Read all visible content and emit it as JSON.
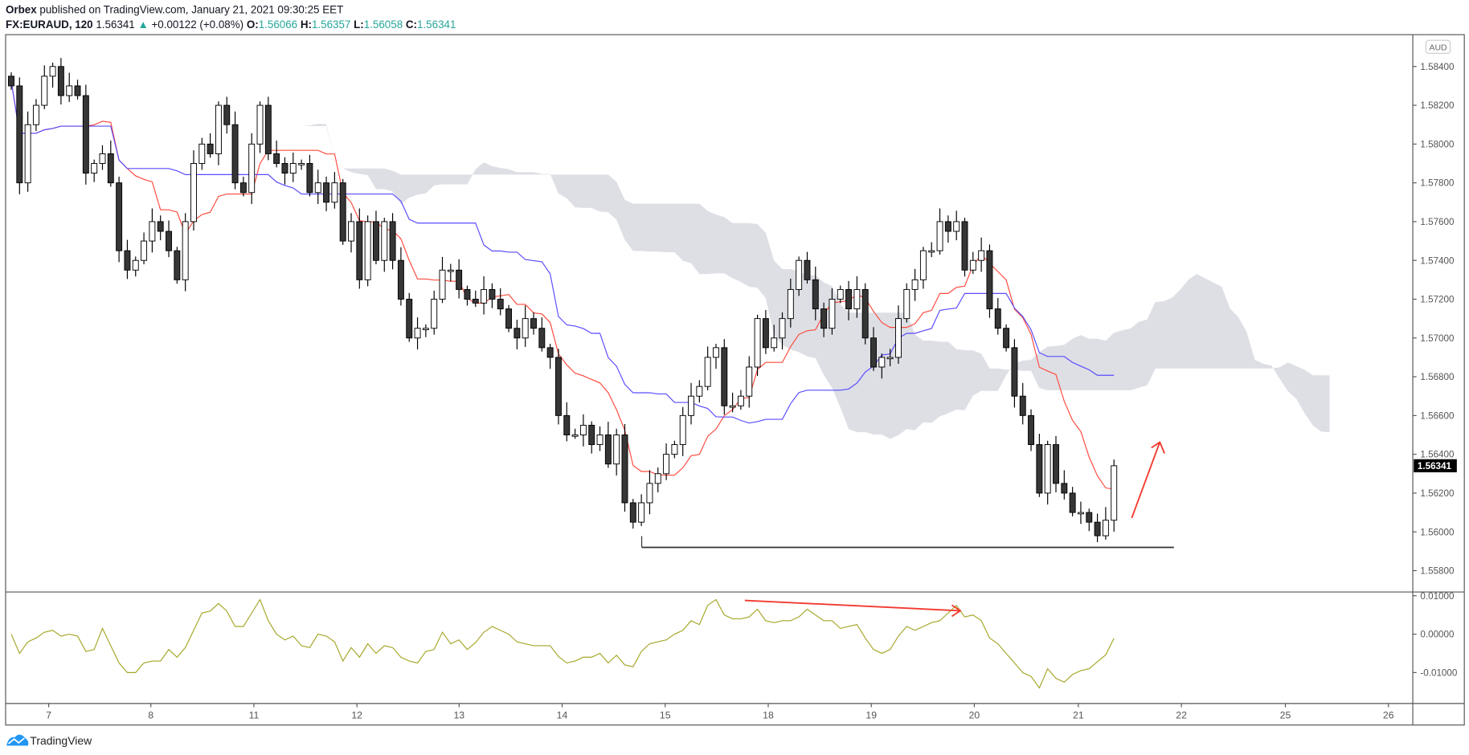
{
  "header": {
    "author": "Orbex",
    "published": " published on TradingView.com, January 21, 2021 09:30:25 EET",
    "symbol": "FX:EURAUD, 120",
    "last": "1.56341",
    "change": "+0.00122 (+0.08%)",
    "o_label": "O:",
    "o": "1.56066",
    "h_label": "H:",
    "h": "1.56357",
    "l_label": "L:",
    "l": "1.56058",
    "c_label": "C:",
    "c": "1.56341",
    "up_icon": "triangle-up"
  },
  "currency_badge": "AUD",
  "current_price_label": "1.56341",
  "footer": {
    "brand": "TradingView"
  },
  "colors": {
    "bull": "#ffffff",
    "bear": "#363636",
    "tenkan": "#ff4a3d",
    "kijun": "#5b4bff",
    "cloud": "#d1d4dc",
    "oscillator": "#a6a62a",
    "annotation": "#f23a2e",
    "up": "#26a69a"
  },
  "chart_data": [
    {
      "type": "candlestick",
      "title": "",
      "price_ticks": [
        "1.58400",
        "1.58200",
        "1.58000",
        "1.57800",
        "1.57600",
        "1.57400",
        "1.57200",
        "1.57000",
        "1.56800",
        "1.56600",
        "1.56400",
        "1.56200",
        "1.56000",
        "1.55800"
      ],
      "ylim": [
        1.557,
        1.5855
      ],
      "date_ticks": [
        "7",
        "8",
        "11",
        "12",
        "13",
        "14",
        "15",
        "18",
        "19",
        "20",
        "21",
        "22",
        "25",
        "26"
      ],
      "indicators": [
        "ichimoku tenkan",
        "ichimoku kijun",
        "ichimoku cloud"
      ],
      "grid": false,
      "close": [
        1.583,
        1.578,
        1.581,
        1.582,
        1.5835,
        1.584,
        1.5825,
        1.583,
        1.5825,
        1.5785,
        1.579,
        1.5795,
        1.578,
        1.5745,
        1.5735,
        1.574,
        1.575,
        1.576,
        1.5755,
        1.5745,
        1.573,
        1.576,
        1.579,
        1.58,
        1.5795,
        1.582,
        1.581,
        1.578,
        1.5775,
        1.58,
        1.582,
        1.5795,
        1.579,
        1.5785,
        1.579,
        1.579,
        1.5775,
        1.578,
        1.577,
        1.578,
        1.575,
        1.576,
        1.573,
        1.576,
        1.574,
        1.576,
        1.574,
        1.572,
        1.57,
        1.5705,
        1.5705,
        1.572,
        1.5735,
        1.5735,
        1.5725,
        1.572,
        1.5718,
        1.5725,
        1.572,
        1.5715,
        1.5705,
        1.57,
        1.571,
        1.5705,
        1.5695,
        1.569,
        1.566,
        1.565,
        1.565,
        1.5655,
        1.5645,
        1.565,
        1.5635,
        1.565,
        1.5615,
        1.5605,
        1.5615,
        1.5625,
        1.563,
        1.564,
        1.5645,
        1.566,
        1.567,
        1.5675,
        1.569,
        1.5695,
        1.5665,
        1.5665,
        1.567,
        1.5685,
        1.571,
        1.5695,
        1.57,
        1.571,
        1.5725,
        1.574,
        1.573,
        1.5715,
        1.5705,
        1.572,
        1.5725,
        1.5715,
        1.5725,
        1.57,
        1.5685,
        1.569,
        1.569,
        1.571,
        1.5725,
        1.573,
        1.5745,
        1.5745,
        1.576,
        1.5755,
        1.576,
        1.5735,
        1.574,
        1.5745,
        1.5715,
        1.5705,
        1.5695,
        1.567,
        1.566,
        1.5645,
        1.562,
        1.5645,
        1.5625,
        1.562,
        1.561,
        1.561,
        1.5605,
        1.5598,
        1.5606,
        1.56341
      ],
      "support_level": 1.5592
    },
    {
      "type": "line",
      "title": "",
      "y_ticks": [
        "0.01000",
        "0.00000",
        "-0.01000"
      ],
      "ylim": [
        -0.0145,
        0.011
      ]
    }
  ]
}
